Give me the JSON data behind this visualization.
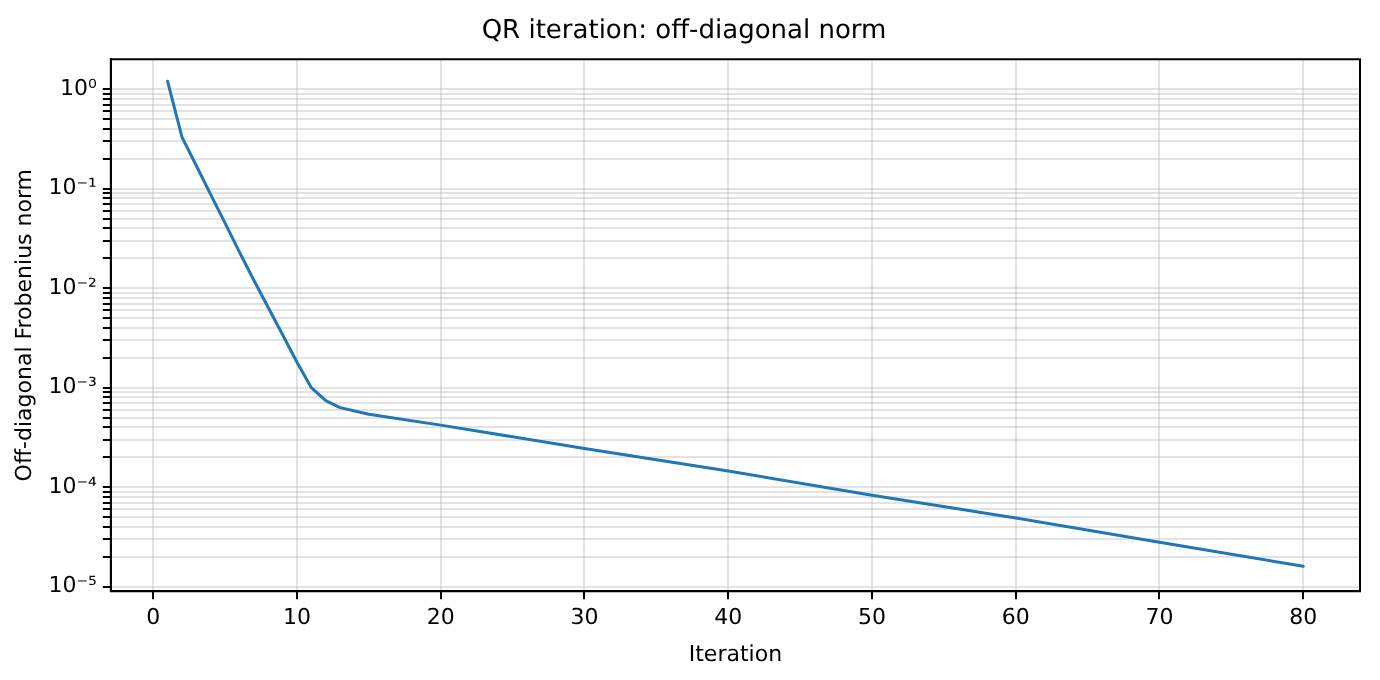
{
  "chart_data": {
    "type": "line",
    "title": "QR iteration: off-diagonal norm",
    "xlabel": "Iteration",
    "ylabel": "Off-diagonal Frobenius norm",
    "log": "y",
    "grid": true,
    "legend": false,
    "marker": "none",
    "line_style": "solid",
    "x": [
      1,
      2,
      3,
      4,
      5,
      6,
      7,
      8,
      9,
      10,
      11,
      12,
      13,
      15,
      20,
      30,
      40,
      50,
      60,
      70,
      80
    ],
    "series": [
      {
        "color": "#1f77b4",
        "values": [
          1.2,
          0.33,
          0.17,
          0.087,
          0.045,
          0.023,
          0.012,
          0.0064,
          0.0034,
          0.0018,
          0.001,
          0.00074,
          0.00063,
          0.00054,
          0.00042,
          0.000245,
          0.000145,
          8.3e-05,
          4.9e-05,
          2.8e-05,
          1.6e-05
        ]
      }
    ],
    "xlim": [
      -2.95,
      83.95
    ],
    "xticks": [
      0,
      10,
      20,
      30,
      40,
      50,
      60,
      70,
      80
    ],
    "ylim": [
      9e-06,
      2
    ],
    "yticks": [
      {
        "value": 1e-05,
        "label": "10⁻⁵"
      },
      {
        "value": 2e-05,
        "label": null
      },
      {
        "value": 3e-05,
        "label": null
      },
      {
        "value": 4e-05,
        "label": null
      },
      {
        "value": 5e-05,
        "label": null
      },
      {
        "value": 6e-05,
        "label": null
      },
      {
        "value": 7e-05,
        "label": null
      },
      {
        "value": 8e-05,
        "label": null
      },
      {
        "value": 9e-05,
        "label": null
      },
      {
        "value": 0.0001,
        "label": "10⁻⁴"
      },
      {
        "value": 0.0002,
        "label": null
      },
      {
        "value": 0.0003,
        "label": null
      },
      {
        "value": 0.0004,
        "label": null
      },
      {
        "value": 0.0005,
        "label": null
      },
      {
        "value": 0.0006,
        "label": null
      },
      {
        "value": 0.0007,
        "label": null
      },
      {
        "value": 0.0008,
        "label": null
      },
      {
        "value": 0.0009,
        "label": null
      },
      {
        "value": 0.001,
        "label": "10⁻³"
      },
      {
        "value": 0.002,
        "label": null
      },
      {
        "value": 0.003,
        "label": null
      },
      {
        "value": 0.004,
        "label": null
      },
      {
        "value": 0.005,
        "label": null
      },
      {
        "value": 0.006,
        "label": null
      },
      {
        "value": 0.007,
        "label": null
      },
      {
        "value": 0.008,
        "label": null
      },
      {
        "value": 0.009,
        "label": null
      },
      {
        "value": 0.01,
        "label": "10⁻²"
      },
      {
        "value": 0.02,
        "label": null
      },
      {
        "value": 0.03,
        "label": null
      },
      {
        "value": 0.04,
        "label": null
      },
      {
        "value": 0.05,
        "label": null
      },
      {
        "value": 0.06,
        "label": null
      },
      {
        "value": 0.07,
        "label": null
      },
      {
        "value": 0.08,
        "label": null
      },
      {
        "value": 0.09,
        "label": null
      },
      {
        "value": 0.1,
        "label": "10⁻¹"
      },
      {
        "value": 0.2,
        "label": null
      },
      {
        "value": 0.3,
        "label": null
      },
      {
        "value": 0.4,
        "label": null
      },
      {
        "value": 0.5,
        "label": null
      },
      {
        "value": 0.6,
        "label": null
      },
      {
        "value": 0.7,
        "label": null
      },
      {
        "value": 0.8,
        "label": null
      },
      {
        "value": 0.9,
        "label": null
      },
      {
        "value": 1,
        "label": "10⁰"
      }
    ]
  }
}
